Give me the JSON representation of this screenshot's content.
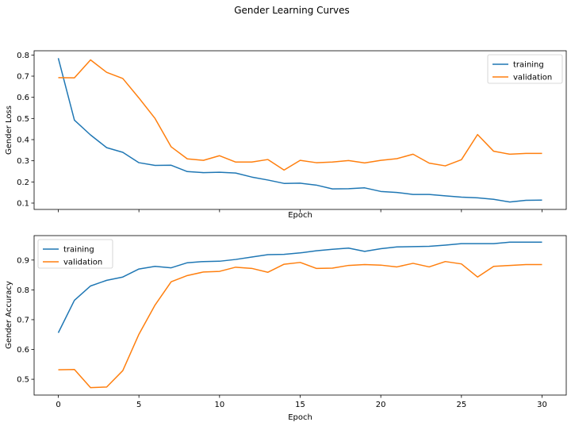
{
  "figure": {
    "suptitle": "Gender Learning Curves"
  },
  "colors": {
    "training": "#1f77b4",
    "validation": "#ff7f0e"
  },
  "chart_data": [
    {
      "type": "line",
      "xlabel": "Epoch",
      "ylabel": "Gender Loss",
      "xlim": [
        -1.5,
        31.5
      ],
      "ylim": [
        0.07,
        0.82
      ],
      "xticks": [
        0,
        5,
        10,
        15,
        20,
        25,
        30
      ],
      "show_xtick_labels": false,
      "yticks": [
        0.1,
        0.2,
        0.3,
        0.4,
        0.5,
        0.6,
        0.7,
        0.8
      ],
      "ytick_labels": [
        "0.1",
        "0.2",
        "0.3",
        "0.4",
        "0.5",
        "0.6",
        "0.7",
        "0.8"
      ],
      "grid": false,
      "legend_position": "upper right",
      "x": [
        0,
        1,
        2,
        3,
        4,
        5,
        6,
        7,
        8,
        9,
        10,
        11,
        12,
        13,
        14,
        15,
        16,
        17,
        18,
        19,
        20,
        21,
        22,
        23,
        24,
        25,
        26,
        27,
        28,
        29,
        30
      ],
      "series": [
        {
          "name": "training",
          "color": "#1f77b4",
          "values": [
            0.785,
            0.492,
            0.422,
            0.362,
            0.34,
            0.291,
            0.278,
            0.279,
            0.249,
            0.244,
            0.246,
            0.242,
            0.223,
            0.209,
            0.193,
            0.194,
            0.185,
            0.167,
            0.168,
            0.172,
            0.155,
            0.15,
            0.141,
            0.141,
            0.134,
            0.128,
            0.125,
            0.118,
            0.105,
            0.113,
            0.114
          ]
        },
        {
          "name": "validation",
          "color": "#ff7f0e",
          "values": [
            0.693,
            0.692,
            0.777,
            0.718,
            0.689,
            0.597,
            0.5,
            0.366,
            0.309,
            0.302,
            0.324,
            0.294,
            0.294,
            0.306,
            0.256,
            0.302,
            0.291,
            0.294,
            0.301,
            0.29,
            0.302,
            0.31,
            0.331,
            0.289,
            0.276,
            0.305,
            0.424,
            0.345,
            0.331,
            0.335,
            0.335
          ]
        }
      ]
    },
    {
      "type": "line",
      "xlabel": "Epoch",
      "ylabel": "Gender Accuracy",
      "xlim": [
        -1.5,
        31.5
      ],
      "ylim": [
        0.447,
        0.982
      ],
      "xticks": [
        0,
        5,
        10,
        15,
        20,
        25,
        30
      ],
      "xtick_labels": [
        "0",
        "5",
        "10",
        "15",
        "20",
        "25",
        "30"
      ],
      "show_xtick_labels": true,
      "yticks": [
        0.5,
        0.6,
        0.7,
        0.8,
        0.9
      ],
      "ytick_labels": [
        "0.5",
        "0.6",
        "0.7",
        "0.8",
        "0.9"
      ],
      "grid": false,
      "legend_position": "upper left",
      "x": [
        0,
        1,
        2,
        3,
        4,
        5,
        6,
        7,
        8,
        9,
        10,
        11,
        12,
        13,
        14,
        15,
        16,
        17,
        18,
        19,
        20,
        21,
        22,
        23,
        24,
        25,
        26,
        27,
        28,
        29,
        30
      ],
      "series": [
        {
          "name": "training",
          "color": "#1f77b4",
          "values": [
            0.656,
            0.765,
            0.813,
            0.832,
            0.843,
            0.87,
            0.879,
            0.874,
            0.891,
            0.895,
            0.896,
            0.902,
            0.91,
            0.918,
            0.919,
            0.924,
            0.931,
            0.936,
            0.94,
            0.929,
            0.938,
            0.944,
            0.945,
            0.946,
            0.95,
            0.955,
            0.955,
            0.955,
            0.96,
            0.96,
            0.96
          ]
        },
        {
          "name": "validation",
          "color": "#ff7f0e",
          "values": [
            0.532,
            0.533,
            0.472,
            0.474,
            0.529,
            0.651,
            0.749,
            0.827,
            0.848,
            0.86,
            0.862,
            0.876,
            0.872,
            0.859,
            0.886,
            0.892,
            0.872,
            0.873,
            0.882,
            0.885,
            0.883,
            0.877,
            0.889,
            0.877,
            0.895,
            0.887,
            0.843,
            0.879,
            0.882,
            0.885,
            0.885
          ]
        }
      ]
    }
  ]
}
